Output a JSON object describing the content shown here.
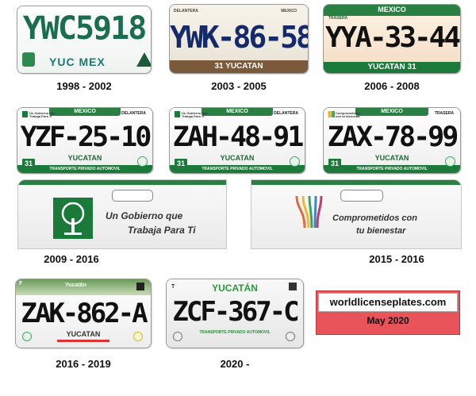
{
  "plates": [
    {
      "number": "YWC5918",
      "bottom_text": "YUC MEX",
      "caption": "1998 - 2002"
    },
    {
      "number": "YWK-86-58",
      "side_left": "DELANTERA",
      "side_right": "MEXICO",
      "state_line": "31 YUCATAN",
      "caption": "2003 - 2005"
    },
    {
      "number": "YYA-33-44",
      "top_label": "MEXICO",
      "side_left": "TRASERA",
      "state_line": "YUCATAN 31",
      "caption": "2006 - 2008"
    },
    {
      "number": "YZF-25-10",
      "top_label": "MEXICO",
      "side_left": "Un Gobierno que Trabaja Para Ti",
      "side_right": "DELANTERA",
      "state_code": "31",
      "state_name": "YUCATAN",
      "type_line": "TRANSPORTE PRIVADO AUTOMOVIL",
      "caption": ""
    },
    {
      "number": "ZAH-48-91",
      "top_label": "MEXICO",
      "side_left": "Un Gobierno que Trabaja Para Ti",
      "side_right": "DELANTERA",
      "state_code": "31",
      "state_name": "YUCATAN",
      "type_line": "TRANSPORTE PRIVADO AUTOMOVIL",
      "caption": ""
    },
    {
      "number": "ZAX-78-99",
      "top_label": "MEXICO",
      "side_left": "Comprometidos con tu bienestar",
      "side_right": "TRASERA",
      "state_code": "31",
      "state_name": "YUCATAN",
      "type_line": "TRANSPORTE PRIVADO AUTOMOVIL",
      "caption": ""
    }
  ],
  "slogans": [
    {
      "line1": "Un Gobierno que",
      "line2": "Trabaja Para Ti",
      "caption": "2009 - 2016"
    },
    {
      "line1": "Comprometidos con",
      "line2": "tu bienestar",
      "caption": "2015 - 2016"
    }
  ],
  "plates_2": [
    {
      "number": "ZAK-862-A",
      "corner": "F",
      "brand": "Yucatán",
      "state_name": "YUCATAN",
      "caption": "2016 - 2019"
    },
    {
      "number": "ZCF-367-C",
      "corner": "T",
      "state_name": "YUCATÁN",
      "type_line": "TRANSPORTE PRIVADO AUTOMOVIL",
      "caption": "2020 -"
    }
  ],
  "credit": {
    "site": "worldlicenseplates.com",
    "date": "May 2020"
  },
  "colors": {
    "green": "#1b7a3a",
    "credit_red": "#e8545a",
    "plate1_text": "#1a6e4e"
  }
}
